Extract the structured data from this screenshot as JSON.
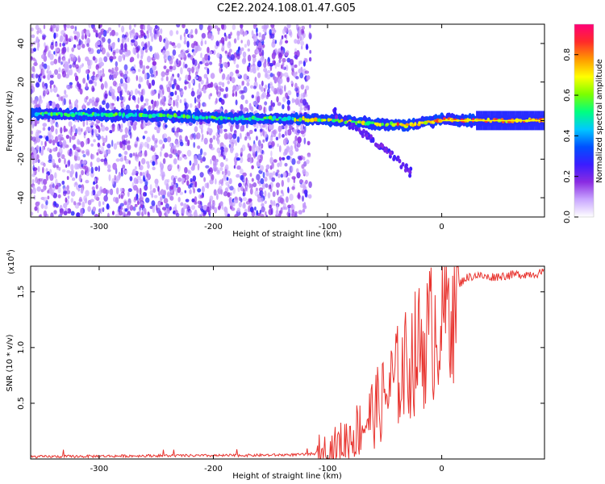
{
  "title": "C2E2.2024.108.01.47.G05",
  "chart_data": [
    {
      "type": "heatmap",
      "xlabel": "Height of straight line (km)",
      "ylabel": "Frequency (Hz)",
      "xlim": [
        -360,
        90
      ],
      "ylim": [
        -50,
        50
      ],
      "x_ticks": [
        -300,
        -200,
        -100,
        0
      ],
      "y_ticks": [
        -40,
        -20,
        0,
        20,
        40
      ],
      "colorbar": {
        "label": "Normalized spectral amplitude",
        "range": [
          0,
          0.95
        ],
        "ticks": [
          0.0,
          0.2,
          0.4,
          0.6,
          0.8
        ],
        "colors": [
          "#ffffff",
          "#c9a6ff",
          "#8a2be2",
          "#3a1cff",
          "#0050ff",
          "#00c8ff",
          "#00ff80",
          "#7cff00",
          "#ffff00",
          "#ff9900",
          "#ff2a2a",
          "#ff0077"
        ]
      },
      "features": {
        "carrier_frequency": [
          {
            "x": -355,
            "y": 3.5
          },
          {
            "x": -300,
            "y": 3
          },
          {
            "x": -250,
            "y": 2.5
          },
          {
            "x": -200,
            "y": 1.5
          },
          {
            "x": -150,
            "y": 1
          },
          {
            "x": -100,
            "y": 0.5
          },
          {
            "x": -60,
            "y": -1.5
          },
          {
            "x": -30,
            "y": -2.5
          },
          {
            "x": 0,
            "y": 0.5
          },
          {
            "x": 40,
            "y": 0
          },
          {
            "x": 88,
            "y": 0
          }
        ],
        "noise_extent_x": [
          -360,
          -115
        ],
        "secondary_branch": [
          {
            "x": -95,
            "y": 5
          },
          {
            "x": -80,
            "y": -2
          },
          {
            "x": -60,
            "y": -10
          },
          {
            "x": -45,
            "y": -17
          },
          {
            "x": -35,
            "y": -23
          },
          {
            "x": -27,
            "y": -27
          }
        ]
      }
    },
    {
      "type": "line",
      "xlabel": "Height of straight line (km)",
      "ylabel": "SNR (10 * v/v)",
      "y_scale_label": "(x10",
      "y_scale_exponent": "4",
      "xlim": [
        -360,
        90
      ],
      "ylim": [
        0,
        1.73
      ],
      "x_ticks": [
        -300,
        -200,
        -100,
        0
      ],
      "y_ticks": [
        0.5,
        1.0,
        1.5
      ],
      "y_tick_labels": [
        "0.5",
        "1.0",
        "1.5"
      ],
      "series": [
        {
          "name": "SNR",
          "color": "#e8342f",
          "x": [
            -360,
            -300,
            -250,
            -200,
            -150,
            -120,
            -100,
            -90,
            -80,
            -70,
            -60,
            -50,
            -40,
            -30,
            -20,
            -10,
            0,
            10,
            20,
            30,
            40,
            60,
            90
          ],
          "values": [
            0.02,
            0.025,
            0.03,
            0.03,
            0.035,
            0.04,
            0.06,
            0.12,
            0.2,
            0.3,
            0.42,
            0.55,
            0.72,
            0.85,
            1.0,
            1.12,
            1.3,
            1.5,
            1.62,
            1.65,
            1.63,
            1.65,
            1.67
          ]
        }
      ]
    }
  ]
}
